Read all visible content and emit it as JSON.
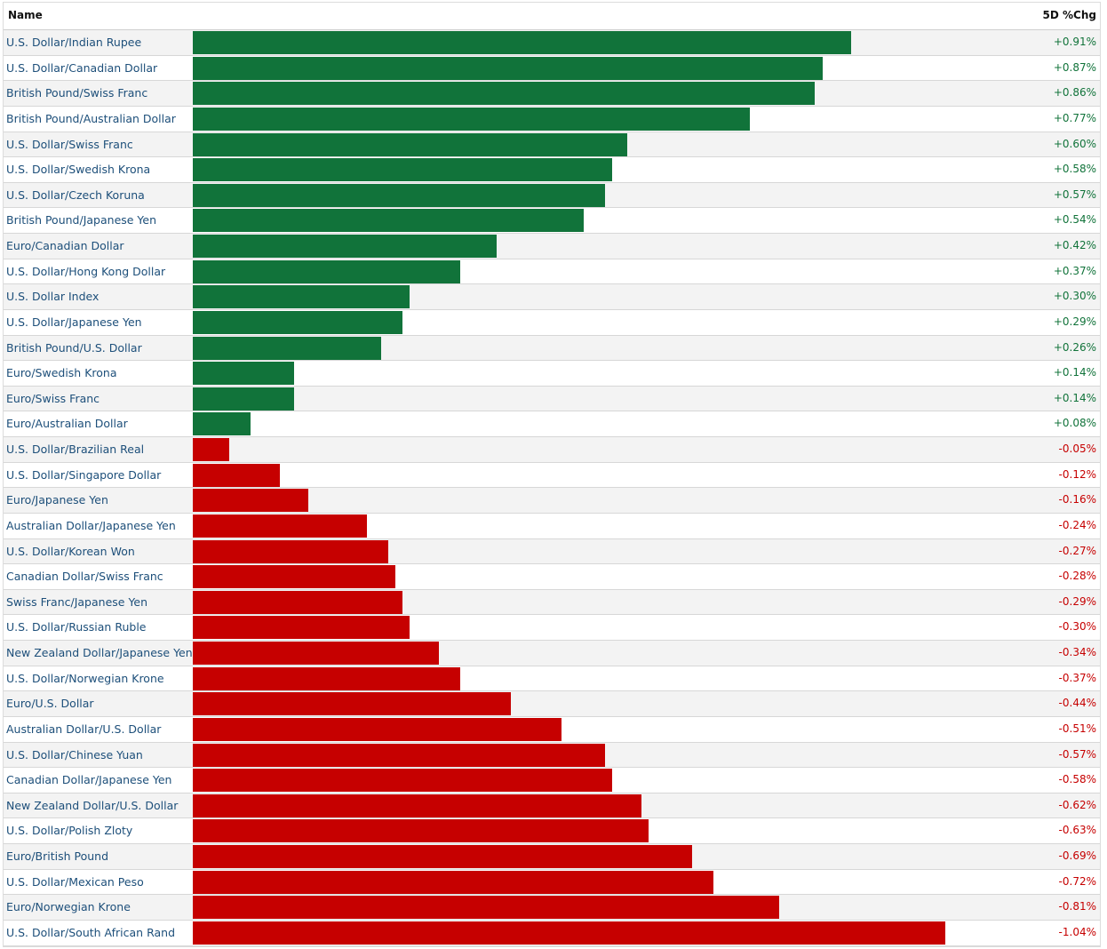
{
  "header": {
    "name_label": "Name",
    "change_label": "5D %Chg"
  },
  "colors": {
    "positive": "#11733a",
    "negative": "#c60000",
    "pos_text": "#11733a",
    "neg_text": "#c60000",
    "name_text": "#1d4f7a"
  },
  "chart_data": {
    "type": "bar",
    "orientation": "horizontal",
    "value_unit": "%",
    "categories": [
      "U.S. Dollar/Indian Rupee",
      "U.S. Dollar/Canadian Dollar",
      "British Pound/Swiss Franc",
      "British Pound/Australian Dollar",
      "U.S. Dollar/Swiss Franc",
      "U.S. Dollar/Swedish Krona",
      "U.S. Dollar/Czech Koruna",
      "British Pound/Japanese Yen",
      "Euro/Canadian Dollar",
      "U.S. Dollar/Hong Kong Dollar",
      "U.S. Dollar Index",
      "U.S. Dollar/Japanese Yen",
      "British Pound/U.S. Dollar",
      "Euro/Swedish Krona",
      "Euro/Swiss Franc",
      "Euro/Australian Dollar",
      "U.S. Dollar/Brazilian Real",
      "U.S. Dollar/Singapore Dollar",
      "Euro/Japanese Yen",
      "Australian Dollar/Japanese Yen",
      "U.S. Dollar/Korean Won",
      "Canadian Dollar/Swiss Franc",
      "Swiss Franc/Japanese Yen",
      "U.S. Dollar/Russian Ruble",
      "New Zealand Dollar/Japanese Yen",
      "U.S. Dollar/Norwegian Krone",
      "Euro/U.S. Dollar",
      "Australian Dollar/U.S. Dollar",
      "U.S. Dollar/Chinese Yuan",
      "Canadian Dollar/Japanese Yen",
      "New Zealand Dollar/U.S. Dollar",
      "U.S. Dollar/Polish Zloty",
      "Euro/British Pound",
      "U.S. Dollar/Mexican Peso",
      "Euro/Norwegian Krone",
      "U.S. Dollar/South African Rand"
    ],
    "values": [
      0.91,
      0.87,
      0.86,
      0.77,
      0.6,
      0.58,
      0.57,
      0.54,
      0.42,
      0.37,
      0.3,
      0.29,
      0.26,
      0.14,
      0.14,
      0.08,
      -0.05,
      -0.12,
      -0.16,
      -0.24,
      -0.27,
      -0.28,
      -0.29,
      -0.3,
      -0.34,
      -0.37,
      -0.44,
      -0.51,
      -0.57,
      -0.58,
      -0.62,
      -0.63,
      -0.69,
      -0.72,
      -0.81,
      -1.04
    ],
    "labels": [
      "+0.91%",
      "+0.87%",
      "+0.86%",
      "+0.77%",
      "+0.60%",
      "+0.58%",
      "+0.57%",
      "+0.54%",
      "+0.42%",
      "+0.37%",
      "+0.30%",
      "+0.29%",
      "+0.26%",
      "+0.14%",
      "+0.14%",
      "+0.08%",
      "-0.05%",
      "-0.12%",
      "-0.16%",
      "-0.24%",
      "-0.27%",
      "-0.28%",
      "-0.29%",
      "-0.30%",
      "-0.34%",
      "-0.37%",
      "-0.44%",
      "-0.51%",
      "-0.57%",
      "-0.58%",
      "-0.62%",
      "-0.63%",
      "-0.69%",
      "-0.72%",
      "-0.81%",
      "-1.04%"
    ]
  }
}
